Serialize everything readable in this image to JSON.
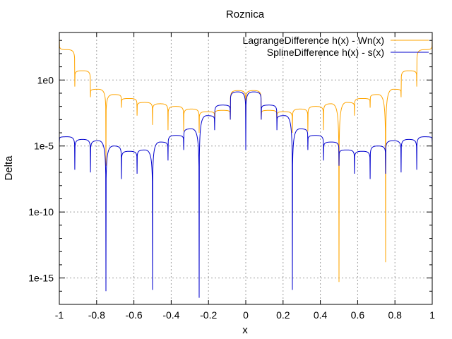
{
  "chart_data": {
    "type": "line",
    "title": "Roznica",
    "xlabel": "x",
    "ylabel": "Delta",
    "xlim": [
      -1,
      1
    ],
    "ylim_log10": [
      -17,
      3.6
    ],
    "y_scale": "log",
    "grid": true,
    "legend_position": "top-right",
    "x_ticks": [
      -1,
      -0.8,
      -0.6,
      -0.4,
      -0.2,
      0,
      0.2,
      0.4,
      0.6,
      0.8,
      1
    ],
    "x_tick_labels": [
      "-1",
      "-0.8",
      "-0.6",
      "-0.4",
      "-0.2",
      "0",
      "0.2",
      "0.4",
      "0.6",
      "0.8",
      "1"
    ],
    "y_ticks_log10": [
      0,
      -5,
      -10,
      -15
    ],
    "y_tick_labels": [
      "1e0",
      "1e-5",
      "1e-10",
      "1e-15"
    ],
    "series": [
      {
        "name": "LagrangeDifference h(x) - Wn(x)",
        "color": "#ffa500",
        "nodes": [
          -0.917,
          -0.833,
          -0.75,
          -0.667,
          -0.583,
          -0.5,
          -0.417,
          -0.333,
          -0.25,
          -0.167,
          -0.083,
          0,
          0.083,
          0.167,
          0.25,
          0.333,
          0.417,
          0.5,
          0.583,
          0.667,
          0.75,
          0.833,
          0.917
        ],
        "node_dip_log10": [
          -0.5,
          -1.3,
          -6.5,
          -2.1,
          -2.7,
          -3.4,
          -3.8,
          -3.9,
          -4.0,
          -3.2,
          -3.0,
          -3.0,
          -3.0,
          -3.2,
          -4.0,
          -3.9,
          -3.8,
          -15.3,
          -2.7,
          -2.1,
          -13.8,
          -1.3,
          -0.5
        ],
        "lobe_peaks_log10": [
          2.3,
          0.7,
          -0.7,
          -1.1,
          -1.4,
          -1.7,
          -1.8,
          -2.0,
          -2.2,
          -2.4,
          -2.3,
          -0.8,
          -0.8,
          -2.3,
          -2.4,
          -2.2,
          -2.0,
          -1.8,
          -1.7,
          -1.4,
          -1.1,
          -0.7,
          0.7,
          2.3
        ]
      },
      {
        "name": "SplineDifference h(x) - s(x)",
        "color": "#0000cd",
        "nodes": [
          -0.917,
          -0.833,
          -0.75,
          -0.667,
          -0.583,
          -0.5,
          -0.417,
          -0.333,
          -0.25,
          -0.167,
          -0.083,
          0,
          0.083,
          0.167,
          0.25,
          0.333,
          0.417,
          0.5,
          0.583,
          0.667,
          0.75,
          0.833,
          0.917
        ],
        "node_dip_log10": [
          -6.8,
          -7.0,
          -16.0,
          -7.5,
          -7.1,
          -15.9,
          -6.1,
          -5.3,
          -16.5,
          -3.8,
          -3.0,
          -5.3,
          -3.0,
          -3.8,
          -15.9,
          -5.3,
          -6.1,
          -6.5,
          -7.1,
          -7.5,
          -7.1,
          -7.0,
          -6.8
        ],
        "lobe_peaks_log10": [
          -4.3,
          -4.5,
          -4.6,
          -5.0,
          -5.4,
          -5.3,
          -4.7,
          -4.2,
          -3.7,
          -2.7,
          -1.9,
          -0.9,
          -0.9,
          -1.9,
          -2.7,
          -3.7,
          -4.2,
          -4.7,
          -5.3,
          -5.4,
          -5.0,
          -4.6,
          -4.5,
          -4.3
        ]
      }
    ]
  }
}
